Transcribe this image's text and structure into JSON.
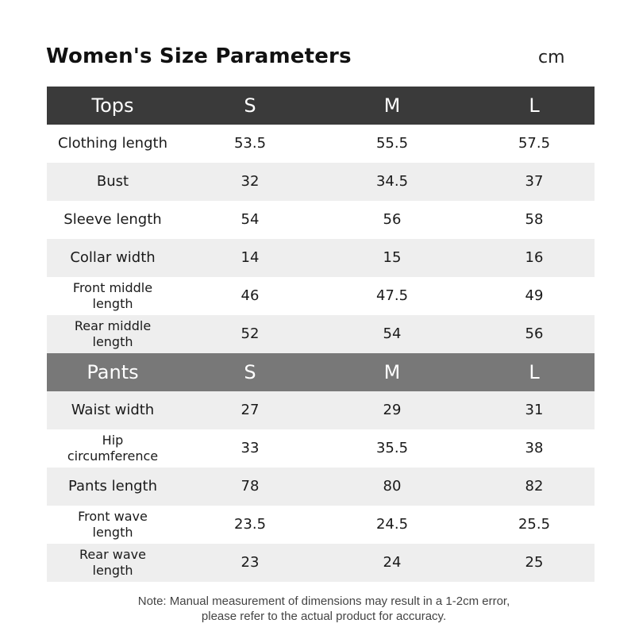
{
  "title": "Women's Size Parameters",
  "unit": "cm",
  "tops": {
    "header": [
      "Tops",
      "S",
      "M",
      "L"
    ],
    "rows": [
      {
        "label": "Clothing length",
        "S": "53.5",
        "M": "55.5",
        "L": "57.5"
      },
      {
        "label": "Bust",
        "S": "32",
        "M": "34.5",
        "L": "37"
      },
      {
        "label": "Sleeve length",
        "S": "54",
        "M": "56",
        "L": "58"
      },
      {
        "label": "Collar width",
        "S": "14",
        "M": "15",
        "L": "16"
      },
      {
        "label": "Front middle length",
        "S": "46",
        "M": "47.5",
        "L": "49"
      },
      {
        "label": "Rear middle length",
        "S": "52",
        "M": "54",
        "L": "56"
      }
    ]
  },
  "pants": {
    "header": [
      "Pants",
      "S",
      "M",
      "L"
    ],
    "rows": [
      {
        "label": "Waist width",
        "S": "27",
        "M": "29",
        "L": "31"
      },
      {
        "label": "Hip circumference",
        "S": "33",
        "M": "35.5",
        "L": "38"
      },
      {
        "label": "Pants length",
        "S": "78",
        "M": "80",
        "L": "82"
      },
      {
        "label": "Front wave length",
        "S": "23.5",
        "M": "24.5",
        "L": "25.5"
      },
      {
        "label": "Rear wave length",
        "S": "23",
        "M": "24",
        "L": "25"
      }
    ]
  },
  "note": {
    "line1": "Note: Manual measurement of dimensions may result in a 1-2cm error,",
    "line2": "please refer to the actual product for accuracy."
  }
}
